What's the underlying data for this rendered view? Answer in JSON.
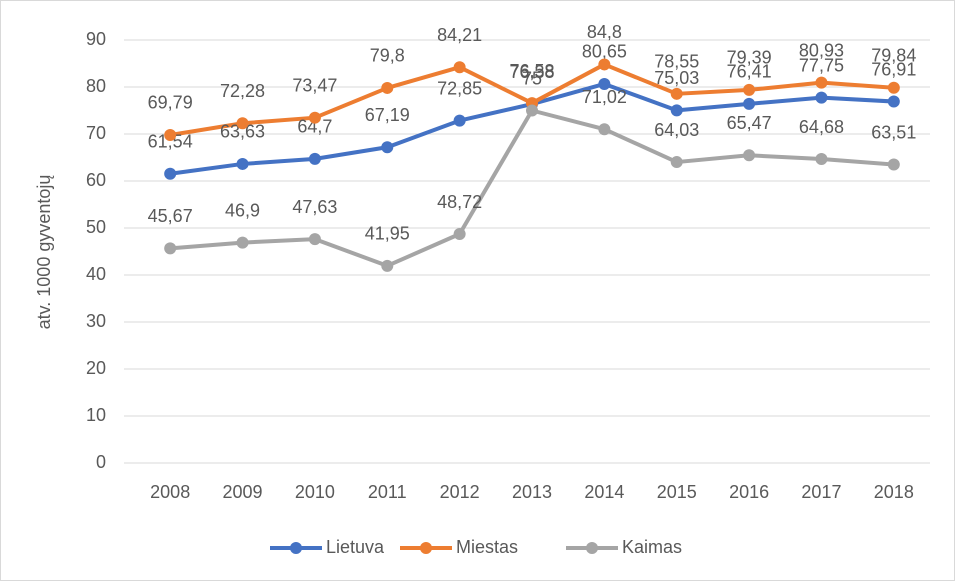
{
  "chart_data": {
    "type": "line",
    "y_label": "atv. 1000 gyventojų",
    "categories": [
      "2008",
      "2009",
      "2010",
      "2011",
      "2012",
      "2013",
      "2014",
      "2015",
      "2016",
      "2017",
      "2018"
    ],
    "series": [
      {
        "name": "Lietuva",
        "color": "#4472c4",
        "values": [
          61.54,
          63.63,
          64.7,
          67.19,
          72.85,
          76.38,
          80.65,
          75.03,
          76.41,
          77.75,
          76.91
        ],
        "value_labels": [
          "61,54",
          "63,63",
          "64,7",
          "67,19",
          "72,85",
          "76,38",
          "80,65",
          "75,03",
          "76,41",
          "77,75",
          "76,91"
        ]
      },
      {
        "name": "Miestas",
        "color": "#ed7d31",
        "values": [
          69.79,
          72.28,
          73.47,
          79.8,
          84.21,
          76.58,
          84.8,
          78.55,
          79.39,
          80.93,
          79.84
        ],
        "value_labels": [
          "69,79",
          "72,28",
          "73,47",
          "79,8",
          "84,21",
          "76,58",
          "84,8",
          "78,55",
          "79,39",
          "80,93",
          "79,84"
        ]
      },
      {
        "name": "Kaimas",
        "color": "#a5a5a5",
        "values": [
          45.67,
          46.9,
          47.63,
          41.95,
          48.72,
          75,
          71.02,
          64.03,
          65.47,
          64.68,
          63.51
        ],
        "value_labels": [
          "45,67",
          "46,9",
          "47,63",
          "41,95",
          "48,72",
          "75",
          "71,02",
          "64,03",
          "65,47",
          "64,68",
          "63,51"
        ]
      }
    ],
    "ylim": [
      0,
      90
    ],
    "yticks": [
      0,
      10,
      20,
      30,
      40,
      50,
      60,
      70,
      80,
      90
    ],
    "grid": true,
    "legend": "bottom"
  }
}
